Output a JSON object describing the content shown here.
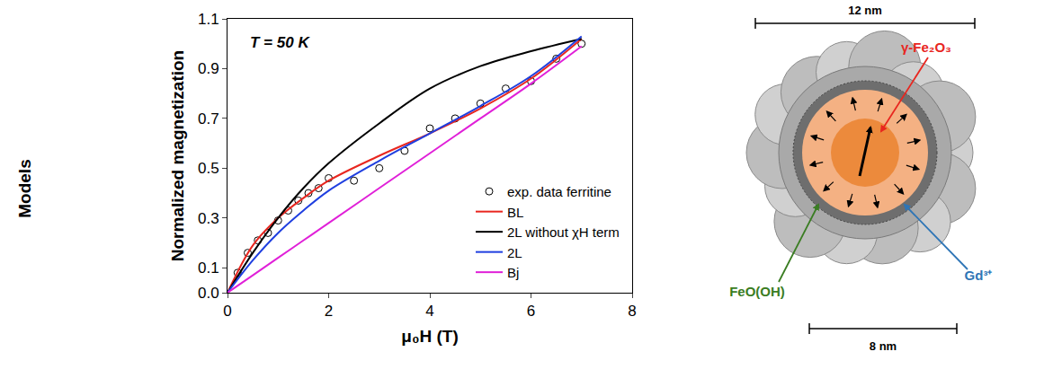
{
  "chart_data": {
    "type": "scatter",
    "annotation": "T = 50 K",
    "x_label": "μ₀H (T)",
    "y_label": "Normalized magnetization",
    "xlim": [
      0,
      8
    ],
    "xticks": [
      0,
      2,
      4,
      6,
      8
    ],
    "ylim": [
      0,
      1.1
    ],
    "yticks": [
      {
        "value": 0,
        "label": "0.0"
      },
      0.1,
      0.3,
      0.5,
      0.7,
      0.9,
      1.1
    ],
    "grid": false,
    "legend": "lower right",
    "series": [
      {
        "name": "exp. data ferritine",
        "type": "scatter",
        "marker": "circle-open",
        "color": "#000000",
        "x": [
          0.2,
          0.4,
          0.6,
          0.8,
          1.0,
          1.2,
          1.4,
          1.6,
          1.8,
          2.0,
          2.5,
          3.0,
          3.5,
          4.0,
          4.5,
          5.0,
          5.5,
          6.0,
          6.5,
          7.0
        ],
        "values": [
          0.08,
          0.16,
          0.21,
          0.24,
          0.29,
          0.33,
          0.37,
          0.4,
          0.42,
          0.46,
          0.45,
          0.5,
          0.57,
          0.66,
          0.7,
          0.76,
          0.82,
          0.85,
          0.94,
          1.0
        ]
      },
      {
        "name": "BL",
        "type": "line",
        "line_style": "solid",
        "color": "#e8261f",
        "x": [
          0,
          0.5,
          1,
          1.5,
          2,
          3,
          4,
          5,
          6,
          7
        ],
        "values": [
          0,
          0.19,
          0.3,
          0.38,
          0.45,
          0.55,
          0.64,
          0.74,
          0.86,
          1.02
        ]
      },
      {
        "name": "2L without χH term",
        "type": "line",
        "line_style": "solid",
        "color": "#000000",
        "x": [
          0,
          0.5,
          1,
          1.5,
          2,
          3,
          4,
          5,
          6,
          7
        ],
        "values": [
          0,
          0.16,
          0.3,
          0.42,
          0.52,
          0.68,
          0.82,
          0.91,
          0.97,
          1.02
        ]
      },
      {
        "name": "2L",
        "type": "line",
        "line_style": "solid",
        "color": "#1f3fe0",
        "x": [
          0,
          0.5,
          1,
          1.5,
          2,
          3,
          4,
          5,
          6,
          7
        ],
        "values": [
          0,
          0.13,
          0.24,
          0.33,
          0.41,
          0.53,
          0.64,
          0.75,
          0.87,
          1.03
        ]
      },
      {
        "name": "Bj",
        "type": "line",
        "line_style": "solid",
        "color": "#e020d8",
        "x": [
          0,
          0.5,
          1,
          1.5,
          2,
          3,
          4,
          5,
          6,
          7
        ],
        "values": [
          0,
          0.07,
          0.14,
          0.21,
          0.28,
          0.42,
          0.56,
          0.7,
          0.84,
          0.99
        ]
      }
    ]
  },
  "side_label": "Models",
  "diagram": {
    "scale_top": "12 nm",
    "scale_bottom": "8 nm",
    "labels": [
      {
        "text": "γ-Fe₂O₃",
        "color": "#e8261f"
      },
      {
        "text": "FeO(OH)",
        "color": "#3a7d22"
      },
      {
        "text": "Gd³⁺",
        "color": "#2e75b6"
      }
    ]
  }
}
